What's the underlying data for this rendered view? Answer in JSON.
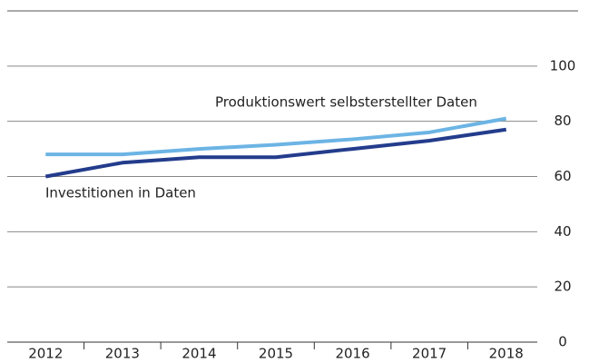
{
  "chart_data": {
    "type": "line",
    "categories": [
      "2012",
      "2013",
      "2014",
      "2015",
      "2016",
      "2017",
      "2018"
    ],
    "series": [
      {
        "name": "Produktionswert selbsterstellter Daten",
        "color": "#6cb4e4",
        "values": [
          68,
          68,
          70,
          71.5,
          73.5,
          76,
          81
        ]
      },
      {
        "name": "Investitionen in Daten",
        "color": "#233c8c",
        "values": [
          60,
          65,
          67,
          67,
          70,
          73,
          77
        ]
      }
    ],
    "ylim": [
      0,
      120
    ],
    "yticks": [
      0,
      20,
      40,
      60,
      80,
      100
    ],
    "grid": true
  }
}
